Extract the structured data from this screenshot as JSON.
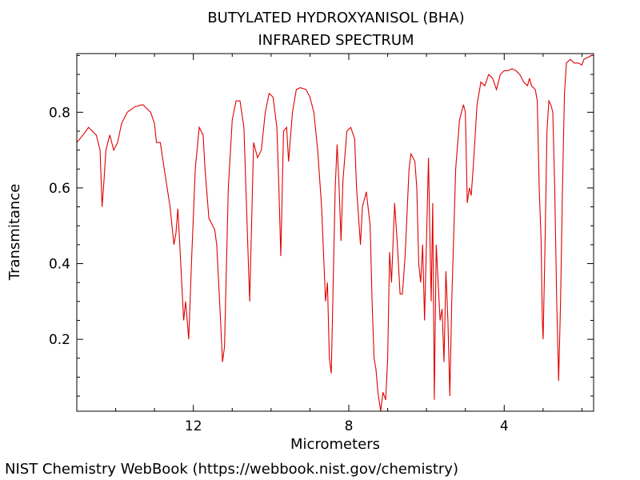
{
  "chart_data": {
    "type": "line",
    "title": "BUTYLATED HYDROXYANISOL (BHA)",
    "subtitle": "INFRARED SPECTRUM",
    "xlabel": "Micrometers",
    "ylabel": "Transmitance",
    "xlim": [
      15.0,
      1.7
    ],
    "ylim": [
      0.01,
      0.955
    ],
    "x_ticks": [
      12,
      8,
      4
    ],
    "y_ticks": [
      0.2,
      0.4,
      0.6,
      0.8
    ],
    "grid": false,
    "legend": "none",
    "series": [
      {
        "color": "#e00000",
        "points": [
          [
            15.0,
            0.72
          ],
          [
            14.8,
            0.745
          ],
          [
            14.7,
            0.76
          ],
          [
            14.6,
            0.75
          ],
          [
            14.5,
            0.74
          ],
          [
            14.4,
            0.7
          ],
          [
            14.35,
            0.55
          ],
          [
            14.3,
            0.62
          ],
          [
            14.25,
            0.7
          ],
          [
            14.15,
            0.74
          ],
          [
            14.05,
            0.7
          ],
          [
            13.95,
            0.72
          ],
          [
            13.85,
            0.77
          ],
          [
            13.7,
            0.8
          ],
          [
            13.5,
            0.815
          ],
          [
            13.3,
            0.82
          ],
          [
            13.1,
            0.8
          ],
          [
            13.0,
            0.77
          ],
          [
            12.95,
            0.72
          ],
          [
            12.85,
            0.72
          ],
          [
            12.75,
            0.65
          ],
          [
            12.6,
            0.55
          ],
          [
            12.5,
            0.45
          ],
          [
            12.45,
            0.48
          ],
          [
            12.4,
            0.545
          ],
          [
            12.35,
            0.45
          ],
          [
            12.25,
            0.25
          ],
          [
            12.2,
            0.3
          ],
          [
            12.15,
            0.24
          ],
          [
            12.12,
            0.2
          ],
          [
            12.05,
            0.4
          ],
          [
            11.95,
            0.65
          ],
          [
            11.85,
            0.76
          ],
          [
            11.75,
            0.74
          ],
          [
            11.7,
            0.65
          ],
          [
            11.6,
            0.52
          ],
          [
            11.45,
            0.49
          ],
          [
            11.4,
            0.45
          ],
          [
            11.3,
            0.25
          ],
          [
            11.25,
            0.14
          ],
          [
            11.2,
            0.18
          ],
          [
            11.1,
            0.6
          ],
          [
            11.0,
            0.78
          ],
          [
            10.9,
            0.83
          ],
          [
            10.8,
            0.83
          ],
          [
            10.7,
            0.76
          ],
          [
            10.6,
            0.45
          ],
          [
            10.55,
            0.3
          ],
          [
            10.45,
            0.72
          ],
          [
            10.35,
            0.68
          ],
          [
            10.25,
            0.7
          ],
          [
            10.15,
            0.8
          ],
          [
            10.05,
            0.85
          ],
          [
            9.95,
            0.84
          ],
          [
            9.85,
            0.76
          ],
          [
            9.8,
            0.6
          ],
          [
            9.75,
            0.42
          ],
          [
            9.68,
            0.75
          ],
          [
            9.6,
            0.76
          ],
          [
            9.55,
            0.67
          ],
          [
            9.45,
            0.8
          ],
          [
            9.35,
            0.86
          ],
          [
            9.25,
            0.865
          ],
          [
            9.1,
            0.86
          ],
          [
            9.0,
            0.84
          ],
          [
            8.9,
            0.8
          ],
          [
            8.8,
            0.7
          ],
          [
            8.7,
            0.55
          ],
          [
            8.6,
            0.3
          ],
          [
            8.55,
            0.35
          ],
          [
            8.5,
            0.15
          ],
          [
            8.45,
            0.11
          ],
          [
            8.35,
            0.6
          ],
          [
            8.3,
            0.715
          ],
          [
            8.25,
            0.6
          ],
          [
            8.2,
            0.46
          ],
          [
            8.15,
            0.62
          ],
          [
            8.05,
            0.75
          ],
          [
            7.95,
            0.76
          ],
          [
            7.85,
            0.73
          ],
          [
            7.8,
            0.6
          ],
          [
            7.7,
            0.45
          ],
          [
            7.65,
            0.55
          ],
          [
            7.55,
            0.59
          ],
          [
            7.45,
            0.5
          ],
          [
            7.4,
            0.3
          ],
          [
            7.35,
            0.15
          ],
          [
            7.3,
            0.12
          ],
          [
            7.25,
            0.06
          ],
          [
            7.18,
            0.01
          ],
          [
            7.12,
            0.06
          ],
          [
            7.05,
            0.04
          ],
          [
            7.0,
            0.15
          ],
          [
            6.95,
            0.43
          ],
          [
            6.9,
            0.35
          ],
          [
            6.82,
            0.56
          ],
          [
            6.75,
            0.45
          ],
          [
            6.68,
            0.32
          ],
          [
            6.62,
            0.32
          ],
          [
            6.55,
            0.42
          ],
          [
            6.45,
            0.65
          ],
          [
            6.4,
            0.69
          ],
          [
            6.3,
            0.67
          ],
          [
            6.25,
            0.6
          ],
          [
            6.2,
            0.4
          ],
          [
            6.15,
            0.35
          ],
          [
            6.1,
            0.45
          ],
          [
            6.05,
            0.25
          ],
          [
            5.95,
            0.68
          ],
          [
            5.9,
            0.4
          ],
          [
            5.88,
            0.3
          ],
          [
            5.84,
            0.56
          ],
          [
            5.8,
            0.04
          ],
          [
            5.75,
            0.45
          ],
          [
            5.7,
            0.35
          ],
          [
            5.65,
            0.25
          ],
          [
            5.6,
            0.28
          ],
          [
            5.55,
            0.14
          ],
          [
            5.5,
            0.38
          ],
          [
            5.45,
            0.25
          ],
          [
            5.4,
            0.05
          ],
          [
            5.35,
            0.3
          ],
          [
            5.25,
            0.65
          ],
          [
            5.15,
            0.78
          ],
          [
            5.05,
            0.82
          ],
          [
            5.0,
            0.8
          ],
          [
            4.95,
            0.56
          ],
          [
            4.9,
            0.6
          ],
          [
            4.85,
            0.58
          ],
          [
            4.8,
            0.65
          ],
          [
            4.7,
            0.82
          ],
          [
            4.6,
            0.88
          ],
          [
            4.5,
            0.87
          ],
          [
            4.4,
            0.9
          ],
          [
            4.3,
            0.89
          ],
          [
            4.2,
            0.86
          ],
          [
            4.1,
            0.9
          ],
          [
            4.0,
            0.91
          ],
          [
            3.9,
            0.91
          ],
          [
            3.8,
            0.915
          ],
          [
            3.7,
            0.91
          ],
          [
            3.6,
            0.9
          ],
          [
            3.5,
            0.88
          ],
          [
            3.4,
            0.87
          ],
          [
            3.35,
            0.89
          ],
          [
            3.3,
            0.87
          ],
          [
            3.2,
            0.86
          ],
          [
            3.15,
            0.83
          ],
          [
            3.1,
            0.6
          ],
          [
            3.05,
            0.46
          ],
          [
            3.02,
            0.25
          ],
          [
            3.0,
            0.2
          ],
          [
            2.95,
            0.45
          ],
          [
            2.9,
            0.75
          ],
          [
            2.85,
            0.83
          ],
          [
            2.8,
            0.82
          ],
          [
            2.75,
            0.8
          ],
          [
            2.7,
            0.6
          ],
          [
            2.65,
            0.3
          ],
          [
            2.6,
            0.09
          ],
          [
            2.55,
            0.3
          ],
          [
            2.5,
            0.6
          ],
          [
            2.45,
            0.85
          ],
          [
            2.4,
            0.93
          ],
          [
            2.3,
            0.94
          ],
          [
            2.2,
            0.93
          ],
          [
            2.1,
            0.93
          ],
          [
            2.0,
            0.925
          ],
          [
            1.95,
            0.94
          ],
          [
            1.85,
            0.945
          ],
          [
            1.75,
            0.95
          ],
          [
            1.7,
            0.95
          ]
        ]
      }
    ]
  },
  "footer": "NIST Chemistry WebBook (https://webbook.nist.gov/chemistry)"
}
